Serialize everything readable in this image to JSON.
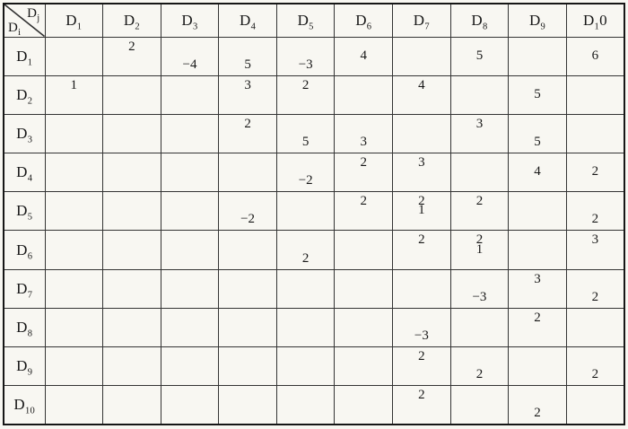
{
  "table": {
    "corner": {
      "col_label": {
        "base": "D",
        "sub": "j"
      },
      "row_label": {
        "base": "D",
        "sub": "i"
      }
    },
    "col_headers": [
      {
        "base": "D",
        "sub": "1"
      },
      {
        "base": "D",
        "sub": "2"
      },
      {
        "base": "D",
        "sub": "3"
      },
      {
        "base": "D",
        "sub": "4"
      },
      {
        "base": "D",
        "sub": "5"
      },
      {
        "base": "D",
        "sub": "6"
      },
      {
        "base": "D",
        "sub": "7"
      },
      {
        "base": "D",
        "sub": "8"
      },
      {
        "base": "D",
        "sub": "9"
      },
      {
        "base": "D",
        "sub": "1",
        "suffix": "0"
      }
    ],
    "row_headers": [
      {
        "base": "D",
        "sub": "1"
      },
      {
        "base": "D",
        "sub": "2"
      },
      {
        "base": "D",
        "sub": "3"
      },
      {
        "base": "D",
        "sub": "4"
      },
      {
        "base": "D",
        "sub": "5"
      },
      {
        "base": "D",
        "sub": "6"
      },
      {
        "base": "D",
        "sub": "7"
      },
      {
        "base": "D",
        "sub": "8"
      },
      {
        "base": "D",
        "sub": "9"
      },
      {
        "base": "D",
        "sub": "10"
      }
    ],
    "rows": [
      [
        null,
        [
          {
            "v": "2",
            "pos": "t"
          }
        ],
        [
          {
            "v": "−4",
            "pos": "b"
          }
        ],
        [
          {
            "v": "5",
            "pos": "b"
          }
        ],
        [
          {
            "v": "−3",
            "pos": "b"
          }
        ],
        [
          {
            "v": "4",
            "pos": "m"
          }
        ],
        null,
        [
          {
            "v": "5",
            "pos": "m"
          }
        ],
        null,
        [
          {
            "v": "6",
            "pos": "m"
          }
        ]
      ],
      [
        [
          {
            "v": "1",
            "pos": "t"
          }
        ],
        null,
        null,
        [
          {
            "v": "3",
            "pos": "t"
          }
        ],
        [
          {
            "v": "2",
            "pos": "t"
          }
        ],
        null,
        [
          {
            "v": "4",
            "pos": "t"
          }
        ],
        null,
        [
          {
            "v": "5",
            "pos": "m"
          }
        ],
        null
      ],
      [
        null,
        null,
        null,
        [
          {
            "v": "2",
            "pos": "t"
          }
        ],
        [
          {
            "v": "5",
            "pos": "b"
          }
        ],
        [
          {
            "v": "3",
            "pos": "b"
          }
        ],
        null,
        [
          {
            "v": "3",
            "pos": "t"
          }
        ],
        [
          {
            "v": "5",
            "pos": "b"
          }
        ],
        null
      ],
      [
        null,
        null,
        null,
        null,
        [
          {
            "v": "−2",
            "pos": "b"
          }
        ],
        [
          {
            "v": "2",
            "pos": "t"
          }
        ],
        [
          {
            "v": "3",
            "pos": "t"
          }
        ],
        null,
        [
          {
            "v": "4",
            "pos": "m"
          }
        ],
        [
          {
            "v": "2",
            "pos": "m"
          }
        ]
      ],
      [
        null,
        null,
        null,
        [
          {
            "v": "−2",
            "pos": "b"
          }
        ],
        null,
        [
          {
            "v": "2",
            "pos": "t"
          }
        ],
        [
          {
            "v": "2",
            "pos": "t"
          },
          {
            "v": "1",
            "pos": "m"
          }
        ],
        [
          {
            "v": "2",
            "pos": "t"
          }
        ],
        null,
        [
          {
            "v": "2",
            "pos": "b"
          }
        ]
      ],
      [
        null,
        null,
        null,
        null,
        [
          {
            "v": "2",
            "pos": "b"
          }
        ],
        null,
        [
          {
            "v": "2",
            "pos": "t"
          }
        ],
        [
          {
            "v": "2",
            "pos": "t"
          },
          {
            "v": "1",
            "pos": "m"
          }
        ],
        null,
        [
          {
            "v": "3",
            "pos": "t"
          }
        ]
      ],
      [
        null,
        null,
        null,
        null,
        null,
        null,
        null,
        [
          {
            "v": "−3",
            "pos": "b"
          }
        ],
        [
          {
            "v": "3",
            "pos": "t"
          }
        ],
        [
          {
            "v": "2",
            "pos": "b"
          }
        ]
      ],
      [
        null,
        null,
        null,
        null,
        null,
        null,
        [
          {
            "v": "−3",
            "pos": "b"
          }
        ],
        null,
        [
          {
            "v": "2",
            "pos": "t"
          }
        ],
        null
      ],
      [
        null,
        null,
        null,
        null,
        null,
        null,
        [
          {
            "v": "2",
            "pos": "t"
          }
        ],
        [
          {
            "v": "2",
            "pos": "b"
          }
        ],
        null,
        [
          {
            "v": "2",
            "pos": "b"
          }
        ]
      ],
      [
        null,
        null,
        null,
        null,
        null,
        null,
        [
          {
            "v": "2",
            "pos": "t"
          }
        ],
        null,
        [
          {
            "v": "2",
            "pos": "b"
          }
        ],
        null
      ]
    ]
  }
}
